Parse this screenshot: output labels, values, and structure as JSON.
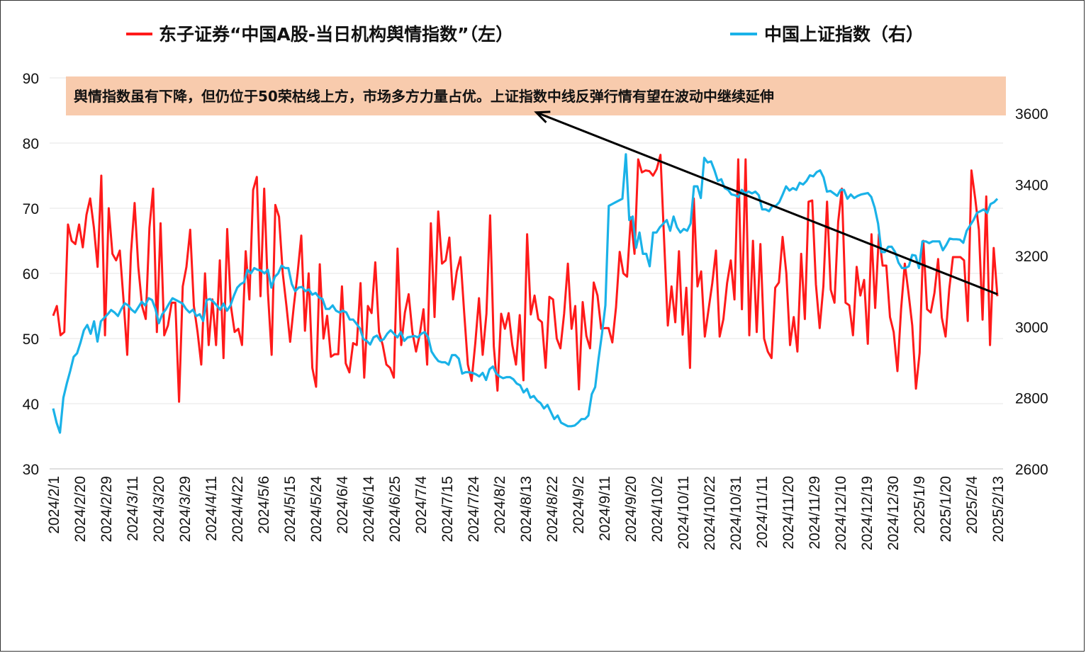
{
  "chart_data": {
    "type": "line",
    "title": "",
    "legend_position": "top",
    "grid": "horizontal",
    "series": [
      {
        "name": "东子证券“中国A股-当日机构舆情指数”（左）",
        "axis": "left",
        "color": "#ff1a1a",
        "values": [
          53.5,
          55,
          50.5,
          51,
          67.5,
          65,
          64.5,
          67.5,
          64,
          69,
          71.5,
          67,
          61,
          75,
          50.5,
          70,
          63,
          62,
          63.5,
          56,
          47.5,
          63,
          70.8,
          61,
          55,
          53,
          67,
          73,
          51,
          67.7,
          50.5,
          52,
          55.5,
          55.5,
          40.3,
          58,
          61,
          66.7,
          55,
          51,
          46,
          60,
          49,
          56,
          49,
          62,
          47,
          66.8,
          55,
          51,
          51.5,
          49,
          63.4,
          56,
          72.8,
          74.8,
          56.5,
          73,
          57,
          47.5,
          70.5,
          68.7,
          60,
          55,
          49.5,
          55,
          60,
          65.8,
          51.2,
          60,
          45.5,
          42.6,
          61.4,
          50,
          53.5,
          47.2,
          47.6,
          47.6,
          58,
          46.2,
          44.8,
          49.3,
          49,
          58.5,
          44,
          55,
          53.9,
          61.7,
          51,
          49,
          46,
          45.5,
          44,
          63.8,
          49,
          54,
          56.8,
          51,
          48,
          50.6,
          54.5,
          46,
          67.7,
          53.3,
          69.5,
          61.5,
          62,
          65.5,
          56,
          60.3,
          62.5,
          54,
          46,
          43.5,
          49.3,
          56.2,
          47.5,
          53.8,
          68.9,
          48.8,
          42,
          53.8,
          51.5,
          53.9,
          49,
          46,
          53.6,
          43.6,
          66,
          53.7,
          56.6,
          53,
          52.5,
          45.5,
          56.4,
          56,
          50,
          48.5,
          53.8,
          61.5,
          51.5,
          55,
          42.2,
          55.6,
          50.4,
          48.5,
          58.6,
          56.6,
          51.5,
          51.6,
          51.6,
          49.4,
          54.8,
          63.3,
          60,
          59.5,
          68.6,
          63,
          77.5,
          75.5,
          75.8,
          75.7,
          75,
          76,
          78.2,
          65,
          52,
          58,
          52.5,
          63.4,
          50.6,
          57.8,
          45.5,
          71.5,
          58,
          60.3,
          50.3,
          54.5,
          58.5,
          63.5,
          50.3,
          53,
          58.5,
          62,
          56,
          77.5,
          54.5,
          77.5,
          50.5,
          65,
          51,
          64.5,
          50,
          48,
          47,
          57.8,
          58.6,
          65.6,
          60,
          49,
          53.3,
          48,
          63,
          53,
          71,
          71.2,
          58.3,
          51.6,
          58,
          71,
          57.5,
          55.5,
          67.9,
          73,
          55.5,
          55.1,
          50.5,
          61,
          56.6,
          59,
          49.2,
          66,
          54.7,
          66,
          61.2,
          61.2,
          53.3,
          51,
          45,
          54.6,
          61.5,
          57,
          52,
          42.3,
          47.8,
          65,
          54.5,
          54,
          57,
          62.2,
          53.2,
          50.3,
          57.6,
          62.5,
          62.5,
          62.5,
          62,
          52.7,
          75.8,
          71.5,
          66.7,
          52.9,
          71.8,
          49,
          63.9,
          56.5
        ]
      },
      {
        "name": "中国上证指数（右）",
        "axis": "right",
        "color": "#1ab2e8",
        "values": [
          2770,
          2730,
          2702,
          2800,
          2840,
          2875,
          2915,
          2925,
          2955,
          2990,
          3005,
          2980,
          3015,
          2958,
          3015,
          3025,
          3035,
          3047,
          3040,
          3030,
          3050,
          3066,
          3060,
          3048,
          3040,
          3055,
          3070,
          3060,
          3080,
          3075,
          3050,
          3010,
          3035,
          3048,
          3065,
          3080,
          3075,
          3070,
          3065,
          3050,
          3040,
          3048,
          3030,
          3035,
          3016,
          3075,
          3078,
          3070,
          3060,
          3048,
          3065,
          3045,
          3060,
          3087,
          3110,
          3120,
          3125,
          3160,
          3150,
          3165,
          3160,
          3158,
          3150,
          3160,
          3110,
          3140,
          3150,
          3172,
          3165,
          3165,
          3120,
          3100,
          3110,
          3112,
          3100,
          3105,
          3090,
          3095,
          3082,
          3078,
          3050,
          3050,
          3060,
          3045,
          3040,
          3045,
          3040,
          3020,
          3020,
          3008,
          2995,
          2965,
          2960,
          2950,
          2970,
          2975,
          2960,
          2965,
          2980,
          2990,
          2980,
          2970,
          2985,
          2960,
          2970,
          2972,
          2974,
          2970,
          2980,
          2985,
          2970,
          2930,
          2915,
          2903,
          2900,
          2900,
          2893,
          2920,
          2920,
          2910,
          2868,
          2872,
          2872,
          2870,
          2866,
          2860,
          2870,
          2850,
          2880,
          2888,
          2868,
          2860,
          2855,
          2858,
          2858,
          2852,
          2840,
          2835,
          2815,
          2825,
          2800,
          2805,
          2792,
          2785,
          2770,
          2780,
          2760,
          2740,
          2750,
          2730,
          2725,
          2720,
          2720,
          2722,
          2730,
          2740,
          2740,
          2750,
          2810,
          2830,
          2910,
          2980,
          3060,
          3340,
          3345,
          3350,
          3355,
          3360,
          3485,
          3300,
          3310,
          3222,
          3265,
          3205,
          3205,
          3170,
          3265,
          3265,
          3280,
          3290,
          3300,
          3270,
          3310,
          3280,
          3265,
          3275,
          3270,
          3290,
          3395,
          3395,
          3362,
          3475,
          3462,
          3465,
          3440,
          3410,
          3415,
          3390,
          3385,
          3372,
          3370,
          3365,
          3385,
          3375,
          3380,
          3375,
          3380,
          3370,
          3330,
          3330,
          3325,
          3340,
          3340,
          3350,
          3372,
          3395,
          3383,
          3390,
          3385,
          3405,
          3400,
          3410,
          3426,
          3423,
          3435,
          3440,
          3420,
          3380,
          3382,
          3375,
          3368,
          3385,
          3385,
          3360,
          3372,
          3362,
          3368,
          3372,
          3374,
          3376,
          3365,
          3335,
          3290,
          3210,
          3210,
          3225,
          3225,
          3210,
          3180,
          3165,
          3165,
          3170,
          3202,
          3200,
          3165,
          3240,
          3240,
          3235,
          3240,
          3240,
          3240,
          3215,
          3230,
          3248,
          3246,
          3246,
          3245,
          3236,
          3270,
          3285,
          3300,
          3320,
          3325,
          3330,
          3320,
          3345,
          3350,
          3360
        ]
      }
    ],
    "x_tick_labels": [
      "2024/2/1",
      "2024/2/20",
      "2024/2/29",
      "2024/3/11",
      "2024/3/20",
      "2024/3/29",
      "2024/4/11",
      "2024/4/22",
      "2024/5/6",
      "2024/5/15",
      "2024/5/24",
      "2024/6/4",
      "2024/6/14",
      "2024/6/25",
      "2024/7/4",
      "2024/7/15",
      "2024/7/24",
      "2024/8/2",
      "2024/8/13",
      "2024/8/22",
      "2024/9/2",
      "2024/9/11",
      "2024/9/20",
      "2024/10/2",
      "2024/10/11",
      "2024/10/22",
      "2024/10/31",
      "2024/11/11",
      "2024/11/20",
      "2024/11/29",
      "2024/12/10",
      "2024/12/19",
      "2024/12/30",
      "2025/1/9",
      "2025/1/20",
      "2025/2/4",
      "2025/2/13"
    ],
    "y_left": {
      "ylim": [
        30,
        90
      ],
      "ticks": [
        30,
        40,
        50,
        60,
        70,
        80,
        90
      ]
    },
    "y_right": {
      "ylim": [
        2600,
        3700
      ],
      "ticks": [
        2600,
        2800,
        3000,
        3200,
        3400,
        3600
      ]
    },
    "annotation": {
      "text": "舆情指数虽有下降，但仍位于50荣枯线上方，市场多方力量占优。上证指数中线反弹行情有望在波动中继续延伸",
      "background": "#f8cbad",
      "arrow": {
        "from_date": "2025/2/18",
        "from_left_value": 56.8,
        "to_date": "2024/8/15",
        "to_left_value": 84.7
      }
    }
  }
}
